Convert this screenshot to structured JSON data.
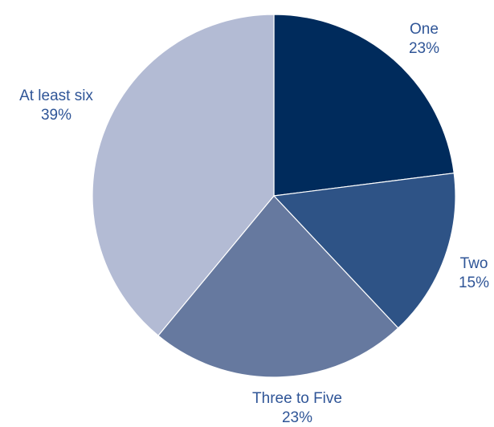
{
  "chart_data": {
    "type": "pie",
    "slices": [
      {
        "label": "One",
        "value": 23,
        "value_label": "23%",
        "color": "#002b5c"
      },
      {
        "label": "Two",
        "value": 15,
        "value_label": "15%",
        "color": "#2e5386"
      },
      {
        "label": "Three to Five",
        "value": 23,
        "value_label": "23%",
        "color": "#66799f"
      },
      {
        "label": "At least six",
        "value": 39,
        "value_label": "39%",
        "color": "#b3bbd4"
      }
    ],
    "start_angle": "12 o'clock",
    "direction": "clockwise",
    "label_color": "#2f5597"
  }
}
